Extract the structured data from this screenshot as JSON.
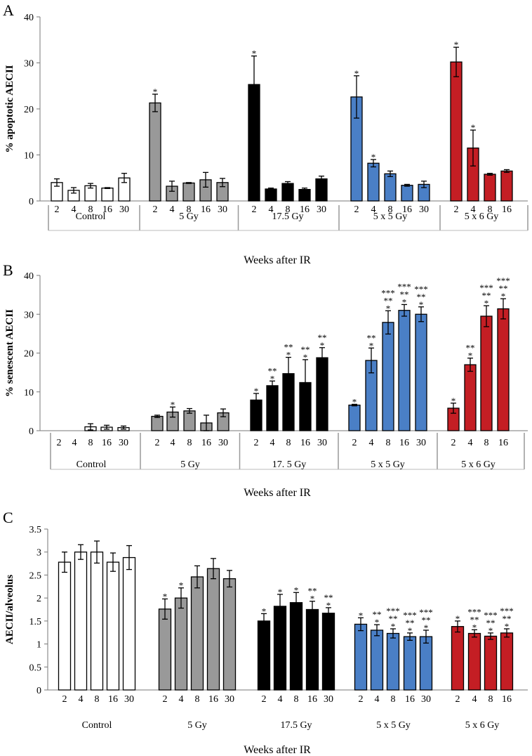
{
  "colors": {
    "Control": "#ffffff",
    "5 Gy": "#999999",
    "17.5 Gy": "#000000",
    "5 x 5 Gy": "#4a7fc6",
    "5 x 6 Gy": "#c41e24"
  },
  "chart_data": [
    {
      "type": "bar",
      "panel": "A",
      "ylabel": "% apoptotic AECII",
      "xlabel": "Weeks after IR",
      "ylim": [
        0,
        40
      ],
      "yticks": [
        0,
        10,
        20,
        30,
        40
      ],
      "groups": [
        {
          "name": "Control",
          "label": "Control",
          "bars": [
            {
              "week": "2",
              "value": 4.0,
              "err": 0.8,
              "sig": ""
            },
            {
              "week": "4",
              "value": 2.3,
              "err": 0.6,
              "sig": ""
            },
            {
              "week": "8",
              "value": 3.3,
              "err": 0.5,
              "sig": ""
            },
            {
              "week": "16",
              "value": 2.8,
              "err": 0.1,
              "sig": ""
            },
            {
              "week": "30",
              "value": 5.0,
              "err": 1.0,
              "sig": ""
            }
          ]
        },
        {
          "name": "5 Gy",
          "label": "5 Gy",
          "bars": [
            {
              "week": "2",
              "value": 21.3,
              "err": 1.9,
              "sig": "*"
            },
            {
              "week": "4",
              "value": 3.2,
              "err": 1.1,
              "sig": ""
            },
            {
              "week": "8",
              "value": 3.9,
              "err": 0.1,
              "sig": ""
            },
            {
              "week": "16",
              "value": 4.6,
              "err": 1.6,
              "sig": ""
            },
            {
              "week": "30",
              "value": 4.0,
              "err": 0.9,
              "sig": ""
            }
          ]
        },
        {
          "name": "17.5 Gy",
          "label": "17.5 Gy",
          "bars": [
            {
              "week": "2",
              "value": 25.3,
              "err": 6.2,
              "sig": "*"
            },
            {
              "week": "4",
              "value": 2.6,
              "err": 0.2,
              "sig": ""
            },
            {
              "week": "8",
              "value": 3.8,
              "err": 0.4,
              "sig": ""
            },
            {
              "week": "16",
              "value": 2.5,
              "err": 0.3,
              "sig": ""
            },
            {
              "week": "30",
              "value": 4.8,
              "err": 0.6,
              "sig": ""
            }
          ]
        },
        {
          "name": "5 x 5 Gy",
          "label": "5 x 5 Gy",
          "bars": [
            {
              "week": "2",
              "value": 22.6,
              "err": 4.6,
              "sig": "*"
            },
            {
              "week": "4",
              "value": 8.2,
              "err": 0.8,
              "sig": "*"
            },
            {
              "week": "8",
              "value": 5.9,
              "err": 0.6,
              "sig": ""
            },
            {
              "week": "16",
              "value": 3.4,
              "err": 0.2,
              "sig": ""
            },
            {
              "week": "30",
              "value": 3.6,
              "err": 0.7,
              "sig": ""
            }
          ]
        },
        {
          "name": "5 x 6 Gy",
          "label": "5 x 6 Gy",
          "bars": [
            {
              "week": "2",
              "value": 30.2,
              "err": 3.2,
              "sig": "*"
            },
            {
              "week": "4",
              "value": 11.5,
              "err": 3.9,
              "sig": "*"
            },
            {
              "week": "8",
              "value": 5.8,
              "err": 0.2,
              "sig": ""
            },
            {
              "week": "16",
              "value": 6.5,
              "err": 0.3,
              "sig": ""
            }
          ]
        }
      ]
    },
    {
      "type": "bar",
      "panel": "B",
      "ylabel": "% senescent AECII",
      "xlabel": "Weeks after IR",
      "ylim": [
        0,
        40
      ],
      "yticks": [
        0,
        10,
        20,
        30,
        40
      ],
      "groups": [
        {
          "name": "Control",
          "label": "Control",
          "bars": [
            {
              "week": "2",
              "value": 0,
              "err": 0,
              "sig": ""
            },
            {
              "week": "4",
              "value": 0,
              "err": 0,
              "sig": ""
            },
            {
              "week": "8",
              "value": 1.0,
              "err": 0.8,
              "sig": ""
            },
            {
              "week": "16",
              "value": 0.9,
              "err": 0.5,
              "sig": ""
            },
            {
              "week": "30",
              "value": 0.8,
              "err": 0.4,
              "sig": ""
            }
          ]
        },
        {
          "name": "5 Gy",
          "label": "5 Gy",
          "bars": [
            {
              "week": "2",
              "value": 3.7,
              "err": 0.3,
              "sig": ""
            },
            {
              "week": "4",
              "value": 4.8,
              "err": 1.3,
              "sig": "*"
            },
            {
              "week": "8",
              "value": 5.1,
              "err": 0.6,
              "sig": ""
            },
            {
              "week": "16",
              "value": 2.0,
              "err": 2.0,
              "sig": ""
            },
            {
              "week": "30",
              "value": 4.6,
              "err": 1.0,
              "sig": ""
            }
          ]
        },
        {
          "name": "17.5 Gy",
          "label": "17. 5 Gy",
          "bars": [
            {
              "week": "2",
              "value": 7.9,
              "err": 1.7,
              "sig": "*"
            },
            {
              "week": "4",
              "value": 11.6,
              "err": 1.2,
              "sig": "**\n*"
            },
            {
              "week": "8",
              "value": 14.7,
              "err": 4.2,
              "sig": "**\n*"
            },
            {
              "week": "16",
              "value": 12.4,
              "err": 5.9,
              "sig": "**\n*"
            },
            {
              "week": "30",
              "value": 18.8,
              "err": 2.6,
              "sig": "**\n*"
            }
          ]
        },
        {
          "name": "5 x 5 Gy",
          "label": "5 x 5 Gy",
          "bars": [
            {
              "week": "2",
              "value": 6.6,
              "err": 0.2,
              "sig": "*"
            },
            {
              "week": "4",
              "value": 18.1,
              "err": 3.2,
              "sig": "**\n*"
            },
            {
              "week": "8",
              "value": 27.9,
              "err": 3.0,
              "sig": "***\n**\n*"
            },
            {
              "week": "16",
              "value": 31.0,
              "err": 1.5,
              "sig": "***\n**\n*"
            },
            {
              "week": "30",
              "value": 30.0,
              "err": 1.9,
              "sig": "***\n**\n*"
            }
          ]
        },
        {
          "name": "5 x 6 Gy",
          "label": "5 x 6 Gy",
          "bars": [
            {
              "week": "2",
              "value": 5.8,
              "err": 1.3,
              "sig": "*"
            },
            {
              "week": "4",
              "value": 17.0,
              "err": 1.7,
              "sig": "**\n*"
            },
            {
              "week": "8",
              "value": 29.5,
              "err": 2.7,
              "sig": "***\n**\n*"
            },
            {
              "week": "16",
              "value": 31.4,
              "err": 2.6,
              "sig": "***\n**\n*"
            }
          ]
        }
      ]
    },
    {
      "type": "bar",
      "panel": "C",
      "ylabel": "AECII/alveolus",
      "xlabel": "Weeks after IR",
      "ylim": [
        0,
        3.5
      ],
      "yticks": [
        0,
        0.5,
        1,
        1.5,
        2,
        2.5,
        3,
        3.5
      ],
      "groups": [
        {
          "name": "Control",
          "label": "Control",
          "bars": [
            {
              "week": "2",
              "value": 2.78,
              "err": 0.22,
              "sig": ""
            },
            {
              "week": "4",
              "value": 3.0,
              "err": 0.16,
              "sig": ""
            },
            {
              "week": "8",
              "value": 3.0,
              "err": 0.24,
              "sig": ""
            },
            {
              "week": "16",
              "value": 2.78,
              "err": 0.2,
              "sig": ""
            },
            {
              "week": "30",
              "value": 2.88,
              "err": 0.26,
              "sig": ""
            }
          ]
        },
        {
          "name": "5 Gy",
          "label": "5 Gy",
          "bars": [
            {
              "week": "2",
              "value": 1.76,
              "err": 0.22,
              "sig": "*"
            },
            {
              "week": "4",
              "value": 2.0,
              "err": 0.22,
              "sig": "*"
            },
            {
              "week": "8",
              "value": 2.46,
              "err": 0.24,
              "sig": ""
            },
            {
              "week": "16",
              "value": 2.64,
              "err": 0.22,
              "sig": ""
            },
            {
              "week": "30",
              "value": 2.42,
              "err": 0.18,
              "sig": ""
            }
          ]
        },
        {
          "name": "17.5 Gy",
          "label": "17.5 Gy",
          "bars": [
            {
              "week": "2",
              "value": 1.5,
              "err": 0.16,
              "sig": "*"
            },
            {
              "week": "4",
              "value": 1.82,
              "err": 0.26,
              "sig": "*"
            },
            {
              "week": "8",
              "value": 1.9,
              "err": 0.22,
              "sig": "*"
            },
            {
              "week": "16",
              "value": 1.75,
              "err": 0.18,
              "sig": "**\n*"
            },
            {
              "week": "30",
              "value": 1.67,
              "err": 0.12,
              "sig": "**\n*"
            }
          ]
        },
        {
          "name": "5 x 5 Gy",
          "label": "5 x 5 Gy",
          "bars": [
            {
              "week": "2",
              "value": 1.43,
              "err": 0.14,
              "sig": "*"
            },
            {
              "week": "4",
              "value": 1.3,
              "err": 0.12,
              "sig": "**\n*"
            },
            {
              "week": "8",
              "value": 1.23,
              "err": 0.1,
              "sig": "***\n**\n*"
            },
            {
              "week": "16",
              "value": 1.16,
              "err": 0.08,
              "sig": "***\n**\n*"
            },
            {
              "week": "30",
              "value": 1.16,
              "err": 0.14,
              "sig": "***\n**\n*"
            }
          ]
        },
        {
          "name": "5 x 6 Gy",
          "label": "5 x 6 Gy",
          "bars": [
            {
              "week": "2",
              "value": 1.38,
              "err": 0.12,
              "sig": "*"
            },
            {
              "week": "4",
              "value": 1.23,
              "err": 0.08,
              "sig": "***\n**\n*"
            },
            {
              "week": "8",
              "value": 1.17,
              "err": 0.07,
              "sig": "***\n**\n*"
            },
            {
              "week": "16",
              "value": 1.24,
              "err": 0.09,
              "sig": "***\n**\n*"
            }
          ]
        }
      ]
    }
  ]
}
